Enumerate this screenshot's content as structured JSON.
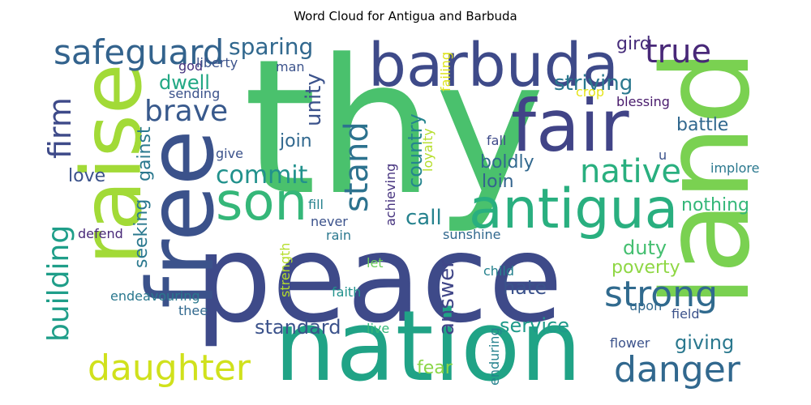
{
  "title": "Word Cloud for Antigua and Barbuda",
  "chart_data": {
    "type": "wordcloud",
    "title": "Word Cloud for Antigua and Barbuda",
    "colormap": "viridis",
    "words": [
      {
        "text": "thy",
        "color": "#4ac16d"
      },
      {
        "text": "peace",
        "color": "#3e4a89"
      },
      {
        "text": "land",
        "color": "#7ad151"
      },
      {
        "text": "nation",
        "color": "#20a386"
      },
      {
        "text": "free",
        "color": "#3b528b"
      },
      {
        "text": "raise",
        "color": "#a2da37"
      },
      {
        "text": "fair",
        "color": "#414487"
      },
      {
        "text": "barbuda",
        "color": "#3e4a89"
      },
      {
        "text": "antigua",
        "color": "#29af7f"
      },
      {
        "text": "son",
        "color": "#35b779"
      },
      {
        "text": "safeguard",
        "color": "#33638d"
      },
      {
        "text": "daughter",
        "color": "#d0e11c"
      },
      {
        "text": "danger",
        "color": "#31688e"
      },
      {
        "text": "strong",
        "color": "#306a8e"
      },
      {
        "text": "true",
        "color": "#482878"
      },
      {
        "text": "native",
        "color": "#29af7f"
      },
      {
        "text": "brave",
        "color": "#38598c"
      },
      {
        "text": "commit",
        "color": "#21918c"
      },
      {
        "text": "stand",
        "color": "#2c728e"
      },
      {
        "text": "firm",
        "color": "#3e4a89"
      },
      {
        "text": "building",
        "color": "#1f9e89"
      },
      {
        "text": "sparing",
        "color": "#31688e"
      },
      {
        "text": "unity",
        "color": "#3b528b"
      },
      {
        "text": "striving",
        "color": "#2a788e"
      },
      {
        "text": "dwell",
        "color": "#22a884"
      },
      {
        "text": "country",
        "color": "#25858e"
      },
      {
        "text": "call",
        "color": "#26828e"
      },
      {
        "text": "duty",
        "color": "#44bf70"
      },
      {
        "text": "poverty",
        "color": "#8fd744"
      },
      {
        "text": "answer",
        "color": "#404688"
      },
      {
        "text": "hate",
        "color": "#3b528b"
      },
      {
        "text": "standard",
        "color": "#3b528b"
      },
      {
        "text": "service",
        "color": "#1f9a8a"
      },
      {
        "text": "giving",
        "color": "#2a788e"
      },
      {
        "text": "fear",
        "color": "#8bd646"
      },
      {
        "text": "love",
        "color": "#3b528b"
      },
      {
        "text": "join",
        "color": "#31688e"
      },
      {
        "text": "boldly",
        "color": "#31688e"
      },
      {
        "text": "loin",
        "color": "#33638d"
      },
      {
        "text": "battle",
        "color": "#31688e"
      },
      {
        "text": "nothing",
        "color": "#35b779"
      },
      {
        "text": "seeking",
        "color": "#2a788e"
      },
      {
        "text": "gainst",
        "color": "#2a788e"
      },
      {
        "text": "gird",
        "color": "#472d7b"
      },
      {
        "text": "man",
        "color": "#3b528b"
      },
      {
        "text": "god",
        "color": "#46337f"
      },
      {
        "text": "liberty",
        "color": "#3b528b"
      },
      {
        "text": "sending",
        "color": "#3b528b"
      },
      {
        "text": "failing",
        "color": "#dde318"
      },
      {
        "text": "loyalty",
        "color": "#b5de2b"
      },
      {
        "text": "crop",
        "color": "#e5e419"
      },
      {
        "text": "blessing",
        "color": "#481a6c"
      },
      {
        "text": "fall",
        "color": "#3e4a89"
      },
      {
        "text": "implore",
        "color": "#2a788e"
      },
      {
        "text": "u",
        "color": "#3b528b"
      },
      {
        "text": "give",
        "color": "#3b528b"
      },
      {
        "text": "fill",
        "color": "#26828e"
      },
      {
        "text": "never",
        "color": "#3b528b"
      },
      {
        "text": "achieving",
        "color": "#46337f"
      },
      {
        "text": "rain",
        "color": "#2a788e"
      },
      {
        "text": "sunshine",
        "color": "#31688e"
      },
      {
        "text": "defend",
        "color": "#482878"
      },
      {
        "text": "child",
        "color": "#26828e"
      },
      {
        "text": "let",
        "color": "#6ccd5a"
      },
      {
        "text": "strength",
        "color": "#b5de2b"
      },
      {
        "text": "endeavouring",
        "color": "#2a788e"
      },
      {
        "text": "faith",
        "color": "#21918c"
      },
      {
        "text": "thee",
        "color": "#31688e"
      },
      {
        "text": "upon",
        "color": "#31688e"
      },
      {
        "text": "field",
        "color": "#3b528b"
      },
      {
        "text": "live",
        "color": "#35b779"
      },
      {
        "text": "enduring",
        "color": "#26828e"
      },
      {
        "text": "flower",
        "color": "#3b528b"
      }
    ]
  }
}
